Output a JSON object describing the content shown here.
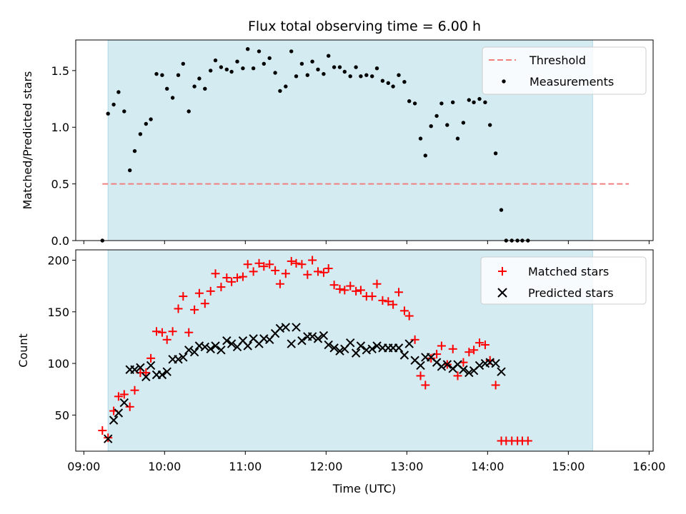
{
  "chart_data": [
    {
      "type": "scatter",
      "title": "Flux total observing time = 6.00 h",
      "xlabel": "",
      "ylabel": "Matched/Predicted stars",
      "ylim": [
        0,
        1.77
      ],
      "xlim_hours": [
        8.9,
        16.05
      ],
      "yticks": [
        0.0,
        0.5,
        1.0,
        1.5
      ],
      "ytick_labels": [
        "0.0",
        "0.5",
        "1.0",
        "1.5"
      ],
      "observing_window_hours": [
        9.3,
        15.3
      ],
      "threshold": {
        "label": "Threshold",
        "value": 0.5,
        "x_start": 9.23,
        "x_end": 15.75,
        "color": "#f08080"
      },
      "legend": [
        "Threshold",
        "Measurements"
      ],
      "legend_position": "top-right",
      "series": [
        {
          "name": "Measurements",
          "color": "#000000",
          "marker": "dot",
          "points": [
            [
              9.23,
              0.0
            ],
            [
              9.3,
              1.12
            ],
            [
              9.37,
              1.2
            ],
            [
              9.43,
              1.31
            ],
            [
              9.5,
              1.14
            ],
            [
              9.57,
              0.62
            ],
            [
              9.63,
              0.79
            ],
            [
              9.7,
              0.94
            ],
            [
              9.77,
              1.03
            ],
            [
              9.83,
              1.07
            ],
            [
              9.9,
              1.47
            ],
            [
              9.97,
              1.46
            ],
            [
              10.03,
              1.34
            ],
            [
              10.1,
              1.26
            ],
            [
              10.17,
              1.46
            ],
            [
              10.23,
              1.56
            ],
            [
              10.3,
              1.14
            ],
            [
              10.37,
              1.36
            ],
            [
              10.43,
              1.43
            ],
            [
              10.5,
              1.34
            ],
            [
              10.57,
              1.5
            ],
            [
              10.63,
              1.59
            ],
            [
              10.7,
              1.53
            ],
            [
              10.77,
              1.51
            ],
            [
              10.83,
              1.49
            ],
            [
              10.9,
              1.58
            ],
            [
              10.97,
              1.52
            ],
            [
              11.03,
              1.69
            ],
            [
              11.1,
              1.52
            ],
            [
              11.17,
              1.67
            ],
            [
              11.23,
              1.56
            ],
            [
              11.3,
              1.61
            ],
            [
              11.37,
              1.48
            ],
            [
              11.43,
              1.32
            ],
            [
              11.5,
              1.36
            ],
            [
              11.57,
              1.67
            ],
            [
              11.63,
              1.45
            ],
            [
              11.7,
              1.56
            ],
            [
              11.77,
              1.46
            ],
            [
              11.83,
              1.58
            ],
            [
              11.9,
              1.51
            ],
            [
              11.97,
              1.47
            ],
            [
              12.03,
              1.63
            ],
            [
              12.1,
              1.53
            ],
            [
              12.17,
              1.53
            ],
            [
              12.23,
              1.49
            ],
            [
              12.3,
              1.45
            ],
            [
              12.37,
              1.53
            ],
            [
              12.43,
              1.45
            ],
            [
              12.5,
              1.46
            ],
            [
              12.57,
              1.45
            ],
            [
              12.63,
              1.52
            ],
            [
              12.7,
              1.41
            ],
            [
              12.77,
              1.39
            ],
            [
              12.83,
              1.36
            ],
            [
              12.9,
              1.46
            ],
            [
              12.97,
              1.4
            ],
            [
              13.03,
              1.23
            ],
            [
              13.1,
              1.21
            ],
            [
              13.17,
              0.9
            ],
            [
              13.23,
              0.75
            ],
            [
              13.3,
              1.01
            ],
            [
              13.37,
              1.1
            ],
            [
              13.43,
              1.21
            ],
            [
              13.5,
              1.02
            ],
            [
              13.57,
              1.22
            ],
            [
              13.63,
              0.9
            ],
            [
              13.7,
              1.04
            ],
            [
              13.77,
              1.24
            ],
            [
              13.83,
              1.22
            ],
            [
              13.9,
              1.25
            ],
            [
              13.97,
              1.22
            ],
            [
              14.03,
              1.02
            ],
            [
              14.1,
              0.77
            ],
            [
              14.17,
              0.27
            ],
            [
              14.23,
              0.0
            ],
            [
              14.3,
              0.0
            ],
            [
              14.37,
              0.0
            ],
            [
              14.43,
              0.0
            ],
            [
              14.5,
              0.0
            ]
          ]
        }
      ]
    },
    {
      "type": "scatter",
      "title": "",
      "xlabel": "Time (UTC)",
      "ylabel": "Count",
      "ylim": [
        15,
        210
      ],
      "xlim_hours": [
        8.9,
        16.05
      ],
      "yticks": [
        50,
        100,
        150,
        200
      ],
      "ytick_labels": [
        "50",
        "100",
        "150",
        "200"
      ],
      "xticks_hours": [
        9,
        10,
        11,
        12,
        13,
        14,
        15,
        16
      ],
      "xtick_labels": [
        "09:00",
        "10:00",
        "11:00",
        "12:00",
        "13:00",
        "14:00",
        "15:00",
        "16:00"
      ],
      "observing_window_hours": [
        9.3,
        15.3
      ],
      "legend": [
        "Matched stars",
        "Predicted stars"
      ],
      "legend_position": "top-right",
      "series": [
        {
          "name": "Matched stars",
          "color": "#ff0000",
          "marker": "plus",
          "points": [
            [
              9.23,
              35
            ],
            [
              9.3,
              28
            ],
            [
              9.37,
              54
            ],
            [
              9.43,
              68
            ],
            [
              9.5,
              70
            ],
            [
              9.57,
              58
            ],
            [
              9.63,
              74
            ],
            [
              9.7,
              91
            ],
            [
              9.77,
              91
            ],
            [
              9.83,
              105
            ],
            [
              9.9,
              131
            ],
            [
              9.97,
              130
            ],
            [
              10.03,
              123
            ],
            [
              10.1,
              131
            ],
            [
              10.17,
              153
            ],
            [
              10.23,
              165
            ],
            [
              10.3,
              130
            ],
            [
              10.37,
              152
            ],
            [
              10.43,
              168
            ],
            [
              10.5,
              158
            ],
            [
              10.57,
              170
            ],
            [
              10.63,
              187
            ],
            [
              10.7,
              174
            ],
            [
              10.77,
              183
            ],
            [
              10.83,
              179
            ],
            [
              10.9,
              183
            ],
            [
              10.97,
              184
            ],
            [
              11.03,
              196
            ],
            [
              11.1,
              189
            ],
            [
              11.17,
              197
            ],
            [
              11.23,
              194
            ],
            [
              11.3,
              196
            ],
            [
              11.37,
              190
            ],
            [
              11.43,
              177
            ],
            [
              11.5,
              187
            ],
            [
              11.57,
              199
            ],
            [
              11.63,
              197
            ],
            [
              11.7,
              196
            ],
            [
              11.77,
              186
            ],
            [
              11.83,
              200
            ],
            [
              11.9,
              189
            ],
            [
              11.97,
              188
            ],
            [
              12.03,
              192
            ],
            [
              12.1,
              176
            ],
            [
              12.17,
              172
            ],
            [
              12.23,
              171
            ],
            [
              12.3,
              175
            ],
            [
              12.37,
              170
            ],
            [
              12.43,
              171
            ],
            [
              12.5,
              165
            ],
            [
              12.57,
              165
            ],
            [
              12.63,
              177
            ],
            [
              12.7,
              161
            ],
            [
              12.77,
              160
            ],
            [
              12.83,
              157
            ],
            [
              12.9,
              169
            ],
            [
              12.97,
              151
            ],
            [
              13.03,
              146
            ],
            [
              13.1,
              123
            ],
            [
              13.17,
              88
            ],
            [
              13.23,
              79
            ],
            [
              13.3,
              105
            ],
            [
              13.37,
              109
            ],
            [
              13.43,
              117
            ],
            [
              13.5,
              99
            ],
            [
              13.57,
              114
            ],
            [
              13.63,
              88
            ],
            [
              13.7,
              101
            ],
            [
              13.77,
              111
            ],
            [
              13.83,
              113
            ],
            [
              13.9,
              120
            ],
            [
              13.97,
              118
            ],
            [
              14.03,
              103
            ],
            [
              14.1,
              79
            ],
            [
              14.17,
              25
            ],
            [
              14.23,
              25
            ],
            [
              14.3,
              25
            ],
            [
              14.37,
              25
            ],
            [
              14.43,
              25
            ],
            [
              14.5,
              25
            ]
          ]
        },
        {
          "name": "Predicted stars",
          "color": "#000000",
          "marker": "x",
          "points": [
            [
              9.3,
              27
            ],
            [
              9.37,
              45
            ],
            [
              9.43,
              52
            ],
            [
              9.5,
              62
            ],
            [
              9.57,
              94
            ],
            [
              9.63,
              94
            ],
            [
              9.7,
              96
            ],
            [
              9.77,
              87
            ],
            [
              9.83,
              98
            ],
            [
              9.9,
              89
            ],
            [
              9.97,
              89
            ],
            [
              10.03,
              92
            ],
            [
              10.1,
              104
            ],
            [
              10.17,
              104
            ],
            [
              10.23,
              106
            ],
            [
              10.3,
              113
            ],
            [
              10.37,
              111
            ],
            [
              10.43,
              117
            ],
            [
              10.5,
              116
            ],
            [
              10.57,
              114
            ],
            [
              10.63,
              117
            ],
            [
              10.7,
              113
            ],
            [
              10.77,
              122
            ],
            [
              10.83,
              119
            ],
            [
              10.9,
              116
            ],
            [
              10.97,
              122
            ],
            [
              11.03,
              117
            ],
            [
              11.1,
              124
            ],
            [
              11.17,
              119
            ],
            [
              11.23,
              124
            ],
            [
              11.3,
              123
            ],
            [
              11.37,
              129
            ],
            [
              11.43,
              134
            ],
            [
              11.5,
              135
            ],
            [
              11.57,
              119
            ],
            [
              11.63,
              135
            ],
            [
              11.7,
              122
            ],
            [
              11.77,
              126
            ],
            [
              11.83,
              126
            ],
            [
              11.9,
              124
            ],
            [
              11.97,
              127
            ],
            [
              12.03,
              118
            ],
            [
              12.1,
              115
            ],
            [
              12.17,
              112
            ],
            [
              12.23,
              114
            ],
            [
              12.3,
              120
            ],
            [
              12.37,
              110
            ],
            [
              12.43,
              117
            ],
            [
              12.5,
              113
            ],
            [
              12.57,
              114
            ],
            [
              12.63,
              117
            ],
            [
              12.7,
              115
            ],
            [
              12.77,
              115
            ],
            [
              12.83,
              115
            ],
            [
              12.9,
              115
            ],
            [
              12.97,
              108
            ],
            [
              13.03,
              119
            ],
            [
              13.1,
              103
            ],
            [
              13.17,
              98
            ],
            [
              13.23,
              106
            ],
            [
              13.3,
              106
            ],
            [
              13.37,
              101
            ],
            [
              13.43,
              97
            ],
            [
              13.5,
              99
            ],
            [
              13.57,
              95
            ],
            [
              13.63,
              99
            ],
            [
              13.7,
              94
            ],
            [
              13.77,
              91
            ],
            [
              13.83,
              93
            ],
            [
              13.9,
              98
            ],
            [
              13.97,
              100
            ],
            [
              14.03,
              101
            ],
            [
              14.1,
              100
            ],
            [
              14.17,
              92
            ]
          ]
        }
      ]
    }
  ]
}
